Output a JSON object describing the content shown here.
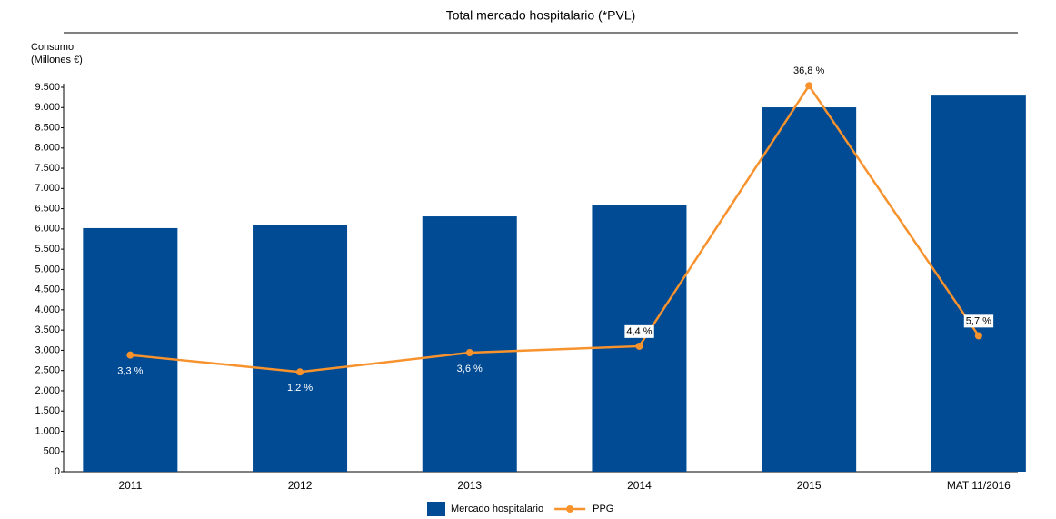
{
  "chart_data": {
    "type": "bar",
    "title": "Total mercado hospitalario (*PVL)",
    "ylabel": [
      "Consumo",
      "(Millones €)"
    ],
    "categories": [
      "2011",
      "2012",
      "2013",
      "2014",
      "2015",
      "MAT 11/2016"
    ],
    "series": [
      {
        "name": "Mercado hospitalario",
        "type": "bar",
        "color": "#004b93",
        "values": [
          6020,
          6090,
          6310,
          6580,
          9005,
          9295
        ]
      },
      {
        "name": "PPG",
        "type": "line",
        "axis": "y2",
        "color": "#f7922d",
        "values": [
          3.3,
          1.2,
          3.6,
          4.4,
          36.8,
          5.7
        ],
        "value_labels": [
          "3,3 %",
          "1,2 %",
          "3,6 %",
          "4,4 %",
          "36,8 %",
          "5,7 %"
        ]
      }
    ],
    "ylim": [
      0,
      9500
    ],
    "yticks": [
      0,
      500,
      {
        "value": 1000,
        "label": "1.000"
      },
      {
        "value": 1500,
        "label": "1.500"
      },
      {
        "value": 2000,
        "label": "2.000"
      },
      {
        "value": 2500,
        "label": "2.500"
      },
      {
        "value": 3000,
        "label": "3.000"
      },
      {
        "value": 3500,
        "label": "3.500"
      },
      {
        "value": 4000,
        "label": "4.000"
      },
      {
        "value": 4500,
        "label": "4.500"
      },
      {
        "value": 5000,
        "label": "5.000"
      },
      {
        "value": 5500,
        "label": "5.500"
      },
      {
        "value": 6000,
        "label": "6.000"
      },
      {
        "value": 6500,
        "label": "6.500"
      },
      {
        "value": 7000,
        "label": "7.000"
      },
      {
        "value": 7500,
        "label": "7.500"
      },
      {
        "value": 8000,
        "label": "8.000"
      },
      {
        "value": 8500,
        "label": "8.500"
      },
      {
        "value": 9000,
        "label": "9.000"
      },
      {
        "value": 9500,
        "label": "9.500"
      }
    ],
    "y2lim": [
      -11.2,
      36.6
    ],
    "legend": "bottom"
  }
}
